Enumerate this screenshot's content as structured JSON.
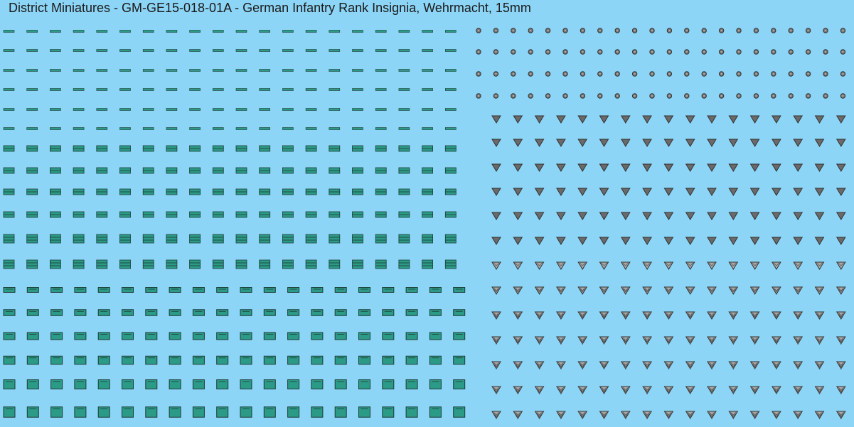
{
  "title": "District Miniatures - GM-GE15-018-01A - German Infantry Rank Insignia, Wehrmacht, 15mm"
}
